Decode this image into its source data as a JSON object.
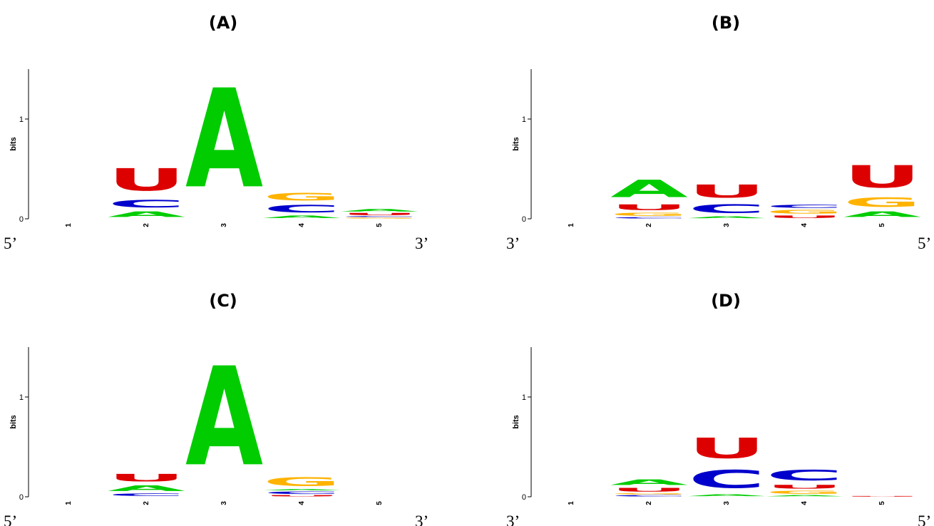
{
  "colors": {
    "A": "#00cc00",
    "C": "#0000cc",
    "G": "#ffb300",
    "U": "#dd0000"
  },
  "chart_data": [
    {
      "type": "sequence-logo",
      "panel": "(A)",
      "ylabel": "bits",
      "ylim": [
        0,
        1.5
      ],
      "yticks": [
        "0",
        "1"
      ],
      "left_end": "5’",
      "right_end": "3’",
      "positions": [
        "1",
        "2",
        "3",
        "4",
        "5"
      ],
      "stacks": [
        [],
        [
          {
            "letter": "A",
            "bits": 0.09
          },
          {
            "letter": "C",
            "bits": 0.12
          },
          {
            "letter": "U",
            "bits": 0.36
          }
        ],
        [
          {
            "letter": "A",
            "bits": 1.59
          }
        ],
        [
          {
            "letter": "A",
            "bits": 0.04
          },
          {
            "letter": "C",
            "bits": 0.12
          },
          {
            "letter": "G",
            "bits": 0.12
          }
        ],
        [
          {
            "letter": "G",
            "bits": 0.015
          },
          {
            "letter": "C",
            "bits": 0.015
          },
          {
            "letter": "U",
            "bits": 0.035
          },
          {
            "letter": "A",
            "bits": 0.04
          }
        ]
      ]
    },
    {
      "type": "sequence-logo",
      "panel": "(B)",
      "ylabel": "bits",
      "ylim": [
        0,
        1.5
      ],
      "yticks": [
        "0",
        "1"
      ],
      "left_end": "3’",
      "right_end": "5’",
      "positions": [
        "1",
        "2",
        "3",
        "4",
        "5"
      ],
      "stacks": [
        [],
        [
          {
            "letter": "C",
            "bits": 0.02
          },
          {
            "letter": "G",
            "bits": 0.05
          },
          {
            "letter": "U",
            "bits": 0.09
          },
          {
            "letter": "A",
            "bits": 0.28
          }
        ],
        [
          {
            "letter": "A",
            "bits": 0.03
          },
          {
            "letter": "C",
            "bits": 0.14
          },
          {
            "letter": "U",
            "bits": 0.21
          }
        ],
        [
          {
            "letter": "U",
            "bits": 0.04
          },
          {
            "letter": "G",
            "bits": 0.06
          },
          {
            "letter": "C",
            "bits": 0.05
          }
        ],
        [
          {
            "letter": "A",
            "bits": 0.09
          },
          {
            "letter": "G",
            "bits": 0.15
          },
          {
            "letter": "U",
            "bits": 0.36
          }
        ]
      ]
    },
    {
      "type": "sequence-logo",
      "panel": "(C)",
      "ylabel": "bits",
      "ylim": [
        0,
        1.5
      ],
      "yticks": [
        "0",
        "1"
      ],
      "left_end": "5’",
      "right_end": "3’",
      "positions": [
        "1",
        "2",
        "3",
        "4",
        "5"
      ],
      "stacks": [
        [],
        [
          {
            "letter": "C",
            "bits": 0.04
          },
          {
            "letter": "A",
            "bits": 0.09
          },
          {
            "letter": "U",
            "bits": 0.12
          }
        ],
        [
          {
            "letter": "A",
            "bits": 1.59
          }
        ],
        [
          {
            "letter": "U",
            "bits": 0.02
          },
          {
            "letter": "C",
            "bits": 0.04
          },
          {
            "letter": "A",
            "bits": 0.02
          },
          {
            "letter": "G",
            "bits": 0.14
          }
        ],
        []
      ]
    },
    {
      "type": "sequence-logo",
      "panel": "(D)",
      "ylabel": "bits",
      "ylim": [
        0,
        1.5
      ],
      "yticks": [
        "0",
        "1"
      ],
      "left_end": "3’",
      "right_end": "5’",
      "positions": [
        "1",
        "2",
        "3",
        "4",
        "5"
      ],
      "stacks": [
        [],
        [
          {
            "letter": "C",
            "bits": 0.02
          },
          {
            "letter": "G",
            "bits": 0.02
          },
          {
            "letter": "U",
            "bits": 0.06
          },
          {
            "letter": "A",
            "bits": 0.09
          }
        ],
        [
          {
            "letter": "A",
            "bits": 0.03
          },
          {
            "letter": "C",
            "bits": 0.29
          },
          {
            "letter": "U",
            "bits": 0.33
          }
        ],
        [
          {
            "letter": "A",
            "bits": 0.02
          },
          {
            "letter": "G",
            "bits": 0.05
          },
          {
            "letter": "U",
            "bits": 0.06
          },
          {
            "letter": "C",
            "bits": 0.17
          }
        ],
        [
          {
            "letter": "U",
            "bits": 0.01
          }
        ]
      ]
    }
  ]
}
